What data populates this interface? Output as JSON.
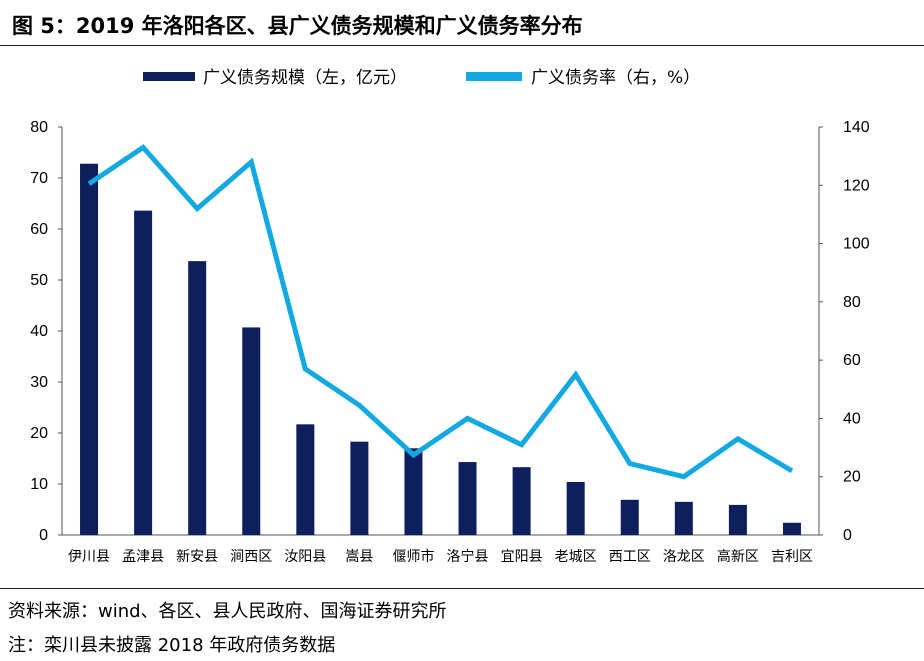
{
  "title": "图 5：2019 年洛阳各区、县广义债务规模和广义债务率分布",
  "source": "资料来源：wind、各区、县人民政府、国海证券研究所",
  "note": "注：栾川县未披露 2018 年政府债务数据",
  "chart_data": {
    "type": "bar+line",
    "categories": [
      "伊川县",
      "孟津县",
      "新安县",
      "涧西区",
      "汝阳县",
      "嵩县",
      "偃师市",
      "洛宁县",
      "宜阳县",
      "老城区",
      "西工区",
      "洛龙区",
      "高新区",
      "吉利区"
    ],
    "series": [
      {
        "name": "广义债务规模（左，亿元）",
        "type": "bar",
        "axis": "left",
        "color": "#0d1f5c",
        "values": [
          72.8,
          63.6,
          53.7,
          40.7,
          21.7,
          18.3,
          17.0,
          14.3,
          13.3,
          10.4,
          6.9,
          6.5,
          5.9,
          2.4
        ]
      },
      {
        "name": "广义债务率（右，%）",
        "type": "line",
        "axis": "right",
        "color": "#12a9e2",
        "values": [
          120.5,
          133.0,
          112.0,
          128.0,
          57.0,
          44.5,
          27.5,
          40.0,
          31.0,
          55.0,
          24.5,
          20.0,
          33.0,
          22.0
        ]
      }
    ],
    "y_left": {
      "min": 0,
      "max": 80,
      "ticks": [
        "0",
        "10",
        "20",
        "30",
        "40",
        "50",
        "60",
        "70",
        "80"
      ]
    },
    "y_right": {
      "min": 0,
      "max": 140,
      "ticks": [
        "0",
        "20",
        "40",
        "60",
        "80",
        "100",
        "120",
        "140"
      ]
    },
    "legend_position": "top-center",
    "grid": false
  }
}
